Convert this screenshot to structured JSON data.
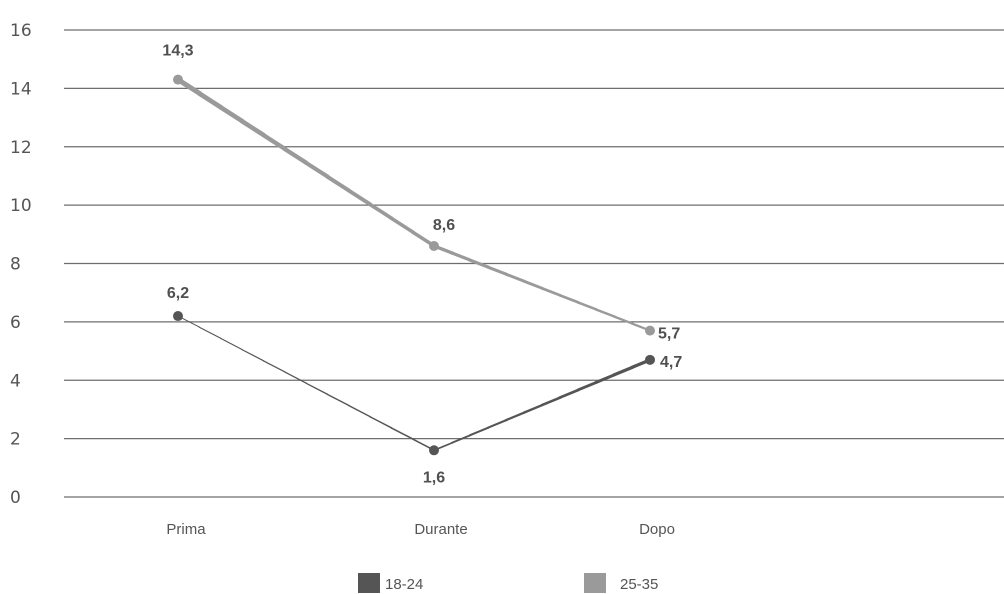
{
  "chart_data": {
    "type": "line",
    "categories": [
      "Prima",
      "Durante",
      "Dopo"
    ],
    "series": [
      {
        "name": "18-24",
        "values": [
          6.2,
          1.6,
          4.7
        ],
        "labels": [
          "6,2",
          "1,6",
          "4,7"
        ],
        "color": "#555555"
      },
      {
        "name": "25-35",
        "values": [
          14.3,
          8.6,
          5.7
        ],
        "labels": [
          "14,3",
          "8,6",
          "5,7"
        ],
        "color": "#9a9a9a"
      }
    ],
    "ylim": [
      0,
      16
    ],
    "yticks": [
      "0",
      "2",
      "4",
      "6",
      "8",
      "10",
      "12",
      "14",
      "16"
    ],
    "grid": true,
    "legend_position": "bottom"
  }
}
